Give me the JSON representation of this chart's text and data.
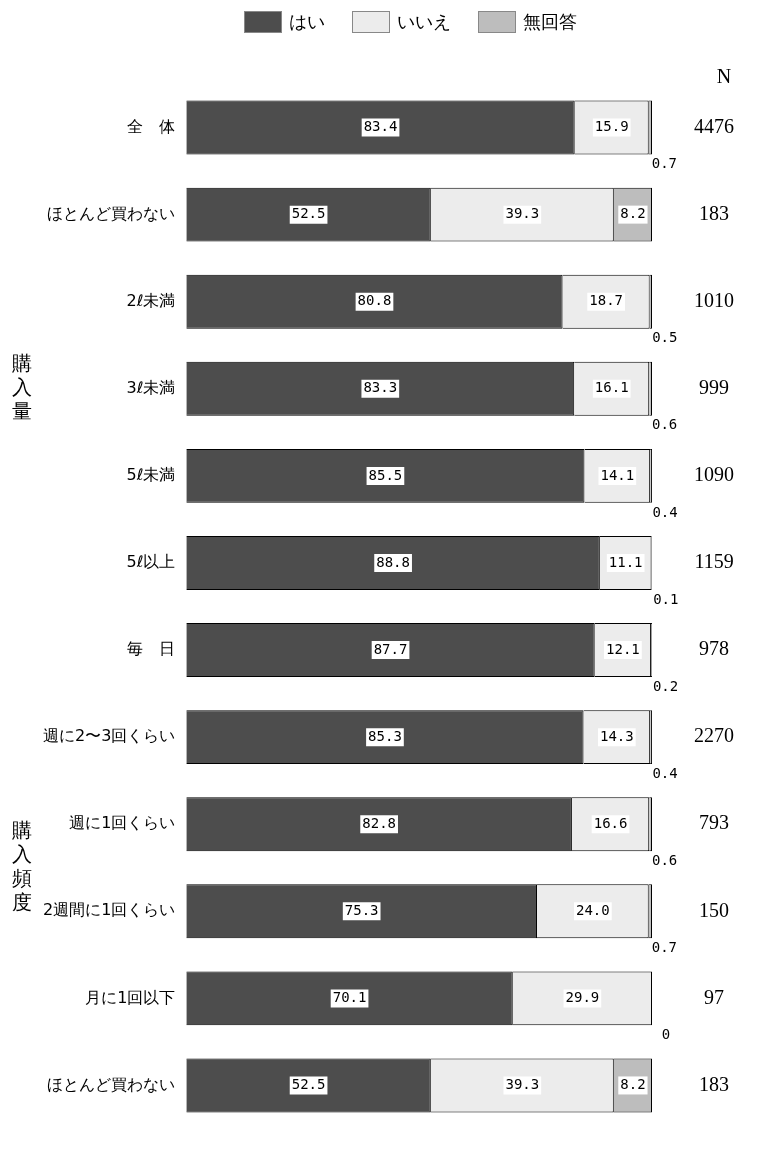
{
  "chart_data": {
    "type": "bar",
    "orientation": "horizontal",
    "stacked": true,
    "categories": [
      "全　体",
      "ほとんど買わない",
      "2ℓ未満",
      "3ℓ未満",
      "5ℓ未満",
      "5ℓ以上",
      "毎　日",
      "週に2〜3回くらい",
      "週に1回くらい",
      "2週間に1回くらい",
      "月に1回以下",
      "ほとんど買わない"
    ],
    "series": [
      {
        "name": "はい",
        "color": "#4d4d4d",
        "values": [
          83.4,
          52.5,
          80.8,
          83.3,
          85.5,
          88.8,
          87.7,
          85.3,
          82.8,
          75.3,
          70.1,
          52.5
        ],
        "value_labels": [
          "83.4",
          "52.5",
          "80.8",
          "83.3",
          "85.5",
          "88.8",
          "87.7",
          "85.3",
          "82.8",
          "75.3",
          "70.1",
          "52.5"
        ]
      },
      {
        "name": "いいえ",
        "color": "#ececec",
        "values": [
          15.9,
          39.3,
          18.7,
          16.1,
          14.1,
          11.1,
          12.1,
          14.3,
          16.6,
          24.0,
          29.9,
          39.3
        ],
        "value_labels": [
          "15.9",
          "39.3",
          "18.7",
          "16.1",
          "14.1",
          "11.1",
          "12.1",
          "14.3",
          "16.6",
          "24.0",
          "29.9",
          "39.3"
        ]
      },
      {
        "name": "無回答",
        "color": "#bdbdbd",
        "values": [
          0.7,
          8.2,
          0.5,
          0.6,
          0.4,
          0.1,
          0.2,
          0.4,
          0.6,
          0.7,
          0,
          8.2
        ],
        "value_labels": [
          "0.7",
          "8.2",
          "0.5",
          "0.6",
          "0.4",
          "0.1",
          "0.2",
          "0.4",
          "0.6",
          "0.7",
          "0",
          "8.2"
        ]
      }
    ],
    "xlim": [
      0,
      100
    ],
    "legend": "top",
    "tick_labels": "y",
    "annotations": [
      "N",
      "4476",
      "183",
      "1010",
      "999",
      "1090",
      "1159",
      "978",
      "2270",
      "793",
      "150",
      "97",
      "183",
      "購入量",
      "購入頻度"
    ]
  }
}
